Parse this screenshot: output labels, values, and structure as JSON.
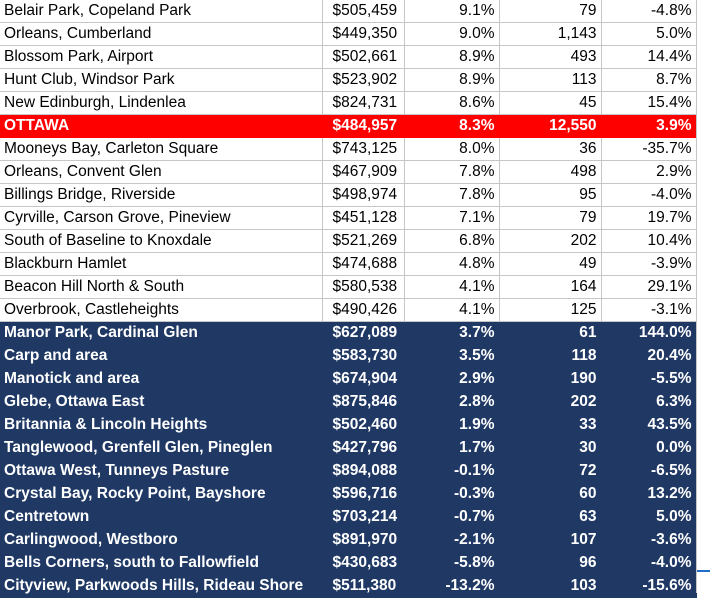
{
  "sheet": {
    "rows": [
      {
        "style": "white",
        "area": "Belair Park, Copeland Park",
        "price": "$505,459",
        "pct": "9.1%",
        "count": "79",
        "change": "-4.8%"
      },
      {
        "style": "white",
        "area": "Orleans, Cumberland",
        "price": "$449,350",
        "pct": "9.0%",
        "count": "1,143",
        "change": "5.0%"
      },
      {
        "style": "white",
        "area": "Blossom Park, Airport",
        "price": "$502,661",
        "pct": "8.9%",
        "count": "493",
        "change": "14.4%"
      },
      {
        "style": "white",
        "area": "Hunt Club, Windsor Park",
        "price": "$523,902",
        "pct": "8.9%",
        "count": "113",
        "change": "8.7%"
      },
      {
        "style": "white",
        "area": "New Edinburgh, Lindenlea",
        "price": "$824,731",
        "pct": "8.6%",
        "count": "45",
        "change": "15.4%"
      },
      {
        "style": "red",
        "area": "OTTAWA",
        "price": "$484,957",
        "pct": "8.3%",
        "count": "12,550",
        "change": "3.9%"
      },
      {
        "style": "white",
        "area": "Mooneys Bay, Carleton Square",
        "price": "$743,125",
        "pct": "8.0%",
        "count": "36",
        "change": "-35.7%"
      },
      {
        "style": "white",
        "area": "Orleans, Convent Glen",
        "price": "$467,909",
        "pct": "7.8%",
        "count": "498",
        "change": "2.9%"
      },
      {
        "style": "white",
        "area": "Billings Bridge, Riverside",
        "price": "$498,974",
        "pct": "7.8%",
        "count": "95",
        "change": "-4.0%"
      },
      {
        "style": "white",
        "area": "Cyrville, Carson Grove, Pineview",
        "price": "$451,128",
        "pct": "7.1%",
        "count": "79",
        "change": "19.7%"
      },
      {
        "style": "white",
        "area": "South of Baseline to Knoxdale",
        "price": "$521,269",
        "pct": "6.8%",
        "count": "202",
        "change": "10.4%"
      },
      {
        "style": "white",
        "area": "Blackburn Hamlet",
        "price": "$474,688",
        "pct": "4.8%",
        "count": "49",
        "change": "-3.9%"
      },
      {
        "style": "white",
        "area": "Beacon Hill North & South",
        "price": "$580,538",
        "pct": "4.1%",
        "count": "164",
        "change": "29.1%"
      },
      {
        "style": "white",
        "area": "Overbrook, Castleheights",
        "price": "$490,426",
        "pct": "4.1%",
        "count": "125",
        "change": "-3.1%"
      },
      {
        "style": "navy",
        "area": "Manor Park, Cardinal Glen",
        "price": "$627,089",
        "pct": "3.7%",
        "count": "61",
        "change": "144.0%"
      },
      {
        "style": "navy",
        "area": "Carp and area",
        "price": "$583,730",
        "pct": "3.5%",
        "count": "118",
        "change": "20.4%"
      },
      {
        "style": "navy",
        "area": "Manotick and area",
        "price": "$674,904",
        "pct": "2.9%",
        "count": "190",
        "change": "-5.5%"
      },
      {
        "style": "navy",
        "area": "Glebe, Ottawa East",
        "price": "$875,846",
        "pct": "2.8%",
        "count": "202",
        "change": "6.3%"
      },
      {
        "style": "navy",
        "area": "Britannia & Lincoln Heights",
        "price": "$502,460",
        "pct": "1.9%",
        "count": "33",
        "change": "43.5%"
      },
      {
        "style": "navy",
        "area": "Tanglewood, Grenfell Glen, Pineglen",
        "price": "$427,796",
        "pct": "1.7%",
        "count": "30",
        "change": "0.0%"
      },
      {
        "style": "navy",
        "area": "Ottawa West, Tunneys Pasture",
        "price": "$894,088",
        "pct": "-0.1%",
        "count": "72",
        "change": "-6.5%"
      },
      {
        "style": "navy",
        "area": "Crystal Bay, Rocky Point, Bayshore",
        "price": "$596,716",
        "pct": "-0.3%",
        "count": "60",
        "change": "13.2%"
      },
      {
        "style": "navy",
        "area": "Centretown",
        "price": "$703,214",
        "pct": "-0.7%",
        "count": "63",
        "change": "5.0%"
      },
      {
        "style": "navy",
        "area": "Carlingwood, Westboro",
        "price": "$891,970",
        "pct": "-2.1%",
        "count": "107",
        "change": "-3.6%"
      },
      {
        "style": "navy",
        "area": "Bells Corners, south to Fallowfield",
        "price": "$430,683",
        "pct": "-5.8%",
        "count": "96",
        "change": "-4.0%"
      },
      {
        "style": "navy",
        "area": "Cityview, Parkwoods Hills, Rideau Shore",
        "price": "$511,380",
        "pct": "-13.2%",
        "count": "103",
        "change": "-15.6%"
      }
    ]
  },
  "colors": {
    "highlight_red": "#ff0000",
    "navy_fill": "#1f3864",
    "gridline": "#c6c6c6",
    "selection_blue": "#1f6fc8"
  }
}
